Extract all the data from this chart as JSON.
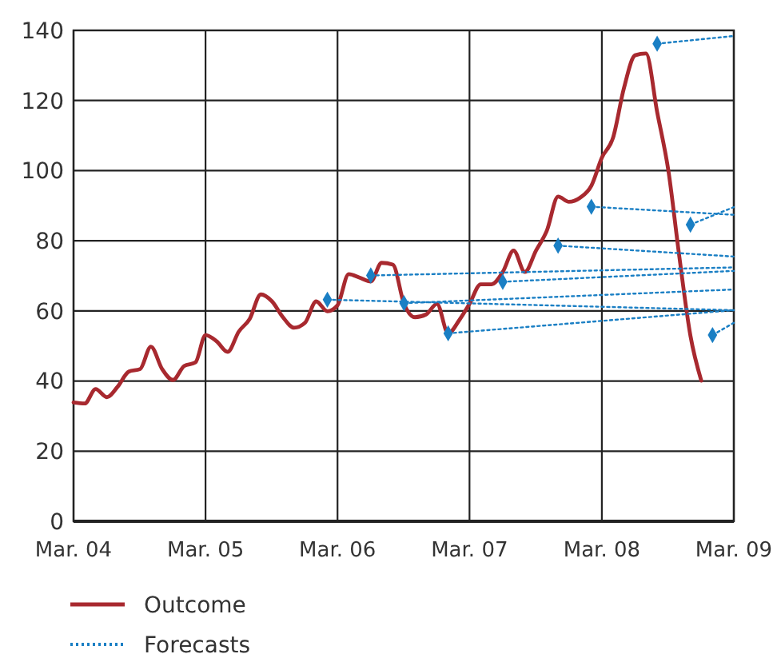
{
  "chart_data": {
    "type": "line",
    "xlim": [
      "2004-03",
      "2009-03"
    ],
    "ylim": [
      0,
      140
    ],
    "xticks": [
      {
        "value": "2004-03",
        "label": "Mar. 04"
      },
      {
        "value": "2005-03",
        "label": "Mar. 05"
      },
      {
        "value": "2006-03",
        "label": "Mar. 06"
      },
      {
        "value": "2007-03",
        "label": "Mar. 07"
      },
      {
        "value": "2008-03",
        "label": "Mar. 08"
      },
      {
        "value": "2009-03",
        "label": "Mar. 09"
      }
    ],
    "yticks": [
      0,
      20,
      40,
      60,
      80,
      100,
      120,
      140
    ],
    "grid": true,
    "legend": "bottom left",
    "series": [
      {
        "name": "Outcome",
        "color": "#a8292f",
        "line_style": "solid",
        "marker": "none",
        "x": [
          "2004-03",
          "2004-04",
          "2004-05",
          "2004-06",
          "2004-07",
          "2004-08",
          "2004-09",
          "2004-10",
          "2004-11",
          "2004-12",
          "2005-01",
          "2005-02",
          "2005-03",
          "2005-04",
          "2005-05",
          "2005-06",
          "2005-07",
          "2005-08",
          "2005-09",
          "2005-10",
          "2005-11",
          "2005-12",
          "2006-01",
          "2006-02",
          "2006-03",
          "2006-04",
          "2006-05",
          "2006-06",
          "2006-07",
          "2006-08",
          "2006-09",
          "2006-10",
          "2006-11",
          "2006-12",
          "2007-01",
          "2007-02",
          "2007-03",
          "2007-04",
          "2007-05",
          "2007-06",
          "2007-07",
          "2007-08",
          "2007-09",
          "2007-10",
          "2007-11",
          "2007-12",
          "2008-01",
          "2008-02",
          "2008-03",
          "2008-04",
          "2008-05",
          "2008-06",
          "2008-07",
          "2008-08",
          "2008-09",
          "2008-10",
          "2008-11",
          "2008-12"
        ],
        "values": [
          33.9,
          33.6,
          37.7,
          35.4,
          38.4,
          42.7,
          43.4,
          49.8,
          43.4,
          40.3,
          44.3,
          45.3,
          53.1,
          51.3,
          48.3,
          54.1,
          57.7,
          64.7,
          62.7,
          58.2,
          55.2,
          56.6,
          62.7,
          59.9,
          61.6,
          70.5,
          69.5,
          68.4,
          73.7,
          73.2,
          62,
          58.2,
          59,
          62,
          53.6,
          57.4,
          62,
          67.6,
          67.6,
          71.1,
          77.2,
          71.1,
          77.2,
          82.9,
          92.6,
          91.1,
          92.3,
          95.7,
          103.7,
          109.4,
          123.5,
          132.9,
          133.4,
          116.7,
          100,
          75.7,
          52.9,
          40.1
        ]
      },
      {
        "name": "Forecasts",
        "color": "#1a7fc4",
        "line_style": "dotted",
        "marker": "diamond",
        "x": [
          "2006-02",
          "2009-03"
        ],
        "values": [
          63.2,
          60.2
        ]
      },
      {
        "color": "#1a7fc4",
        "line_style": "dotted",
        "marker": "diamond",
        "x": [
          "2006-06",
          "2009-03"
        ],
        "values": [
          70.1,
          72.4
        ]
      },
      {
        "color": "#1a7fc4",
        "line_style": "dotted",
        "marker": "diamond",
        "x": [
          "2006-09",
          "2009-03"
        ],
        "values": [
          62.2,
          66.1
        ]
      },
      {
        "color": "#1a7fc4",
        "line_style": "dotted",
        "marker": "diamond",
        "x": [
          "2007-01",
          "2009-03"
        ],
        "values": [
          53.6,
          60.2
        ]
      },
      {
        "color": "#1a7fc4",
        "line_style": "dotted",
        "marker": "diamond",
        "x": [
          "2007-06",
          "2009-03"
        ],
        "values": [
          68.3,
          71.4
        ]
      },
      {
        "color": "#1a7fc4",
        "line_style": "dotted",
        "marker": "diamond",
        "x": [
          "2007-11",
          "2009-03"
        ],
        "values": [
          78.6,
          75.5
        ]
      },
      {
        "color": "#1a7fc4",
        "line_style": "dotted",
        "marker": "diamond",
        "x": [
          "2008-02",
          "2009-03"
        ],
        "values": [
          89.7,
          87.4
        ]
      },
      {
        "color": "#1a7fc4",
        "line_style": "dotted",
        "marker": "diamond",
        "x": [
          "2008-08",
          "2009-03"
        ],
        "values": [
          136.2,
          138.4
        ]
      },
      {
        "color": "#1a7fc4",
        "line_style": "dotted",
        "marker": "diamond",
        "x": [
          "2008-11",
          "2009-03"
        ],
        "values": [
          84.6,
          89.6
        ]
      },
      {
        "color": "#1a7fc4",
        "line_style": "dotted",
        "marker": "diamond",
        "x": [
          "2009-01",
          "2009-03"
        ],
        "values": [
          53.1,
          56.6
        ]
      }
    ]
  }
}
